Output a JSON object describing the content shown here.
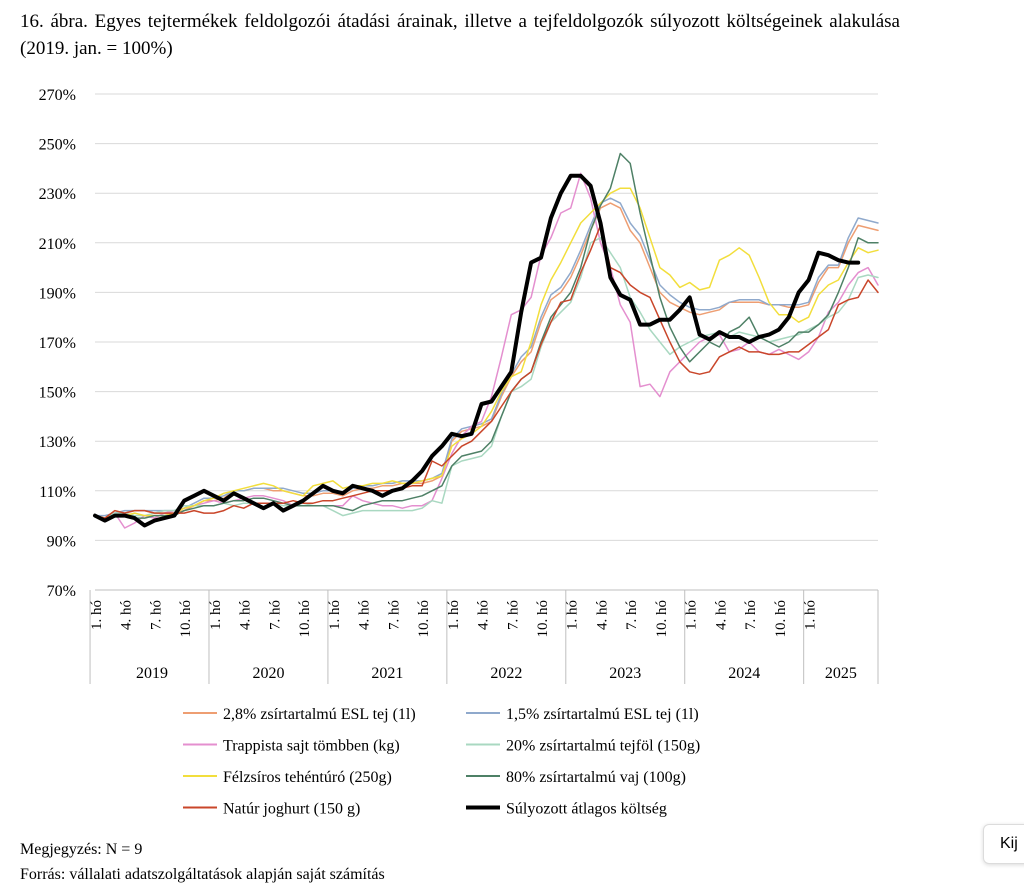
{
  "caption": "16. ábra. Egyes tejtermékek feldolgozói átadási árainak, illetve a tejfeldolgozók súlyozott költségeinek alakulása (2019. jan. = 100%)",
  "note": "Megjegyzés: N = 9",
  "source": "Forrás: vállalati adatszolgáltatások alapján saját számítás",
  "side_button_label": "Kij",
  "chart_data": {
    "type": "line",
    "ylim": [
      70,
      270
    ],
    "y_ticks": [
      "70%",
      "90%",
      "110%",
      "130%",
      "150%",
      "170%",
      "190%",
      "210%",
      "230%",
      "250%",
      "270%"
    ],
    "x_tick_labels": [
      "1. hó",
      "4. hó",
      "7. hó",
      "10. hó",
      "1. hó",
      "4. hó",
      "7. hó",
      "10. hó",
      "1. hó",
      "4. hó",
      "7. hó",
      "10. hó",
      "1. hó",
      "4. hó",
      "7. hó",
      "10. hó",
      "1. hó",
      "4. hó",
      "7. hó",
      "10. hó",
      "1. hó",
      "4. hó",
      "7. hó",
      "10. hó",
      "1. hó"
    ],
    "years": [
      "2019",
      "2020",
      "2021",
      "2022",
      "2023",
      "2024",
      "2025"
    ],
    "grid": true,
    "legend_position": "bottom",
    "series": [
      {
        "name": "2,8% zsírtartalmú ESL tej (1l)",
        "color": "#ee9e72",
        "width": 1.5,
        "values": [
          100,
          99,
          101,
          101,
          102,
          102,
          101,
          101,
          101,
          102,
          104,
          106,
          106,
          107,
          110,
          110,
          111,
          111,
          110,
          110,
          109,
          108,
          108,
          109,
          109,
          108,
          110,
          111,
          111,
          112,
          112,
          113,
          113,
          113,
          114,
          116,
          130,
          134,
          135,
          136,
          138,
          148,
          156,
          162,
          166,
          178,
          187,
          190,
          196,
          205,
          215,
          224,
          226,
          224,
          215,
          210,
          200,
          190,
          186,
          184,
          182,
          181,
          182,
          183,
          186,
          186,
          186,
          186,
          185,
          185,
          184,
          184,
          185,
          194,
          200,
          200,
          210,
          217,
          216,
          215
        ]
      },
      {
        "name": "1,5% zsírtartalmú ESL tej (1l)",
        "color": "#8fa9cc",
        "width": 1.5,
        "values": [
          100,
          100,
          101,
          102,
          102,
          102,
          102,
          102,
          102,
          103,
          105,
          107,
          107,
          108,
          110,
          110,
          111,
          111,
          111,
          111,
          110,
          109,
          109,
          110,
          110,
          109,
          111,
          112,
          112,
          113,
          113,
          114,
          114,
          114,
          115,
          117,
          131,
          135,
          136,
          137,
          139,
          149,
          157,
          164,
          168,
          180,
          189,
          192,
          198,
          207,
          217,
          226,
          228,
          226,
          218,
          213,
          203,
          193,
          189,
          186,
          184,
          183,
          183,
          184,
          186,
          187,
          187,
          187,
          185,
          185,
          185,
          185,
          186,
          196,
          201,
          201,
          212,
          220,
          219,
          218
        ]
      },
      {
        "name": "Trappista sajt tömbben (kg)",
        "color": "#e48fcf",
        "width": 1.5,
        "values": [
          100,
          99,
          101,
          95,
          97,
          100,
          99,
          101,
          102,
          103,
          104,
          105,
          106,
          105,
          106,
          107,
          108,
          108,
          107,
          106,
          104,
          104,
          104,
          104,
          104,
          104,
          108,
          106,
          105,
          104,
          104,
          103,
          104,
          104,
          106,
          115,
          125,
          132,
          136,
          138,
          148,
          164,
          181,
          183,
          188,
          205,
          212,
          222,
          224,
          238,
          228,
          210,
          200,
          185,
          178,
          152,
          153,
          148,
          158,
          162,
          166,
          170,
          172,
          173,
          166,
          167,
          170,
          166,
          165,
          167,
          165,
          163,
          166,
          172,
          182,
          186,
          193,
          198,
          200,
          193
        ]
      },
      {
        "name": "20% zsírtartalmú tejföl (150g)",
        "color": "#a9d8c1",
        "width": 1.5,
        "values": [
          100,
          99,
          101,
          101,
          100,
          100,
          101,
          102,
          102,
          104,
          104,
          104,
          104,
          105,
          104,
          105,
          105,
          105,
          105,
          104,
          104,
          105,
          104,
          104,
          102,
          100,
          101,
          102,
          102,
          102,
          102,
          102,
          102,
          103,
          106,
          105,
          120,
          122,
          123,
          124,
          128,
          140,
          150,
          152,
          155,
          168,
          178,
          182,
          186,
          196,
          210,
          212,
          206,
          200,
          188,
          182,
          175,
          170,
          165,
          168,
          170,
          172,
          173,
          174,
          172,
          174,
          173,
          172,
          170,
          171,
          172,
          173,
          175,
          177,
          180,
          182,
          187,
          196,
          197,
          196
        ]
      },
      {
        "name": "Félzsíros tehéntúró (250g)",
        "color": "#f2de3c",
        "width": 1.5,
        "values": [
          100,
          99,
          100,
          100,
          101,
          100,
          100,
          100,
          101,
          103,
          104,
          106,
          107,
          109,
          110,
          111,
          112,
          113,
          112,
          110,
          109,
          108,
          112,
          113,
          114,
          111,
          112,
          112,
          113,
          113,
          114,
          113,
          113,
          114,
          115,
          116,
          128,
          131,
          133,
          136,
          142,
          150,
          156,
          158,
          170,
          185,
          195,
          202,
          210,
          218,
          222,
          226,
          230,
          232,
          232,
          224,
          212,
          200,
          197,
          192,
          194,
          191,
          192,
          203,
          205,
          208,
          205,
          196,
          186,
          181,
          181,
          178,
          180,
          189,
          193,
          195,
          202,
          208,
          206,
          207
        ]
      },
      {
        "name": "80% zsírtartalmú vaj (100g)",
        "color": "#4e8066",
        "width": 1.5,
        "values": [
          100,
          98,
          100,
          100,
          99,
          99,
          100,
          100,
          100,
          102,
          103,
          104,
          104,
          105,
          106,
          106,
          107,
          107,
          106,
          105,
          104,
          104,
          104,
          104,
          104,
          103,
          102,
          104,
          105,
          106,
          106,
          106,
          107,
          108,
          110,
          112,
          120,
          124,
          125,
          126,
          130,
          140,
          150,
          155,
          158,
          170,
          180,
          185,
          190,
          200,
          215,
          225,
          232,
          246,
          242,
          222,
          205,
          188,
          176,
          168,
          162,
          166,
          170,
          168,
          174,
          176,
          180,
          172,
          170,
          168,
          170,
          174,
          174,
          177,
          181,
          190,
          200,
          212,
          210,
          210
        ]
      },
      {
        "name": "Natúr joghurt (150 g)",
        "color": "#c9462a",
        "width": 1.5,
        "values": [
          100,
          99,
          102,
          101,
          102,
          102,
          101,
          101,
          101,
          101,
          102,
          101,
          101,
          102,
          104,
          103,
          105,
          105,
          105,
          105,
          106,
          105,
          105,
          106,
          106,
          107,
          108,
          109,
          110,
          110,
          110,
          111,
          112,
          112,
          122,
          120,
          124,
          128,
          130,
          134,
          138,
          144,
          150,
          155,
          158,
          169,
          178,
          186,
          187,
          198,
          207,
          217,
          200,
          198,
          193,
          190,
          188,
          179,
          170,
          162,
          158,
          157,
          158,
          164,
          166,
          168,
          166,
          166,
          165,
          165,
          166,
          166,
          169,
          172,
          175,
          185,
          187,
          188,
          195,
          190
        ]
      },
      {
        "name": "Súlyozott átlagos költség",
        "color": "#000000",
        "width": 4,
        "values": [
          100,
          98,
          100,
          100,
          99,
          96,
          98,
          99,
          100,
          106,
          108,
          110,
          108,
          106,
          109,
          107,
          105,
          103,
          105,
          102,
          104,
          106,
          109,
          112,
          110,
          109,
          112,
          111,
          110,
          108,
          110,
          111,
          114,
          118,
          124,
          128,
          133,
          132,
          133,
          145,
          146,
          152,
          158,
          182,
          202,
          204,
          220,
          230,
          237,
          237,
          233,
          218,
          196,
          189,
          187,
          177,
          177,
          179,
          179,
          183,
          188,
          173,
          171,
          174,
          172,
          172,
          170,
          172,
          173,
          175,
          180,
          190,
          195,
          206,
          205,
          203,
          202,
          202
        ]
      }
    ]
  }
}
